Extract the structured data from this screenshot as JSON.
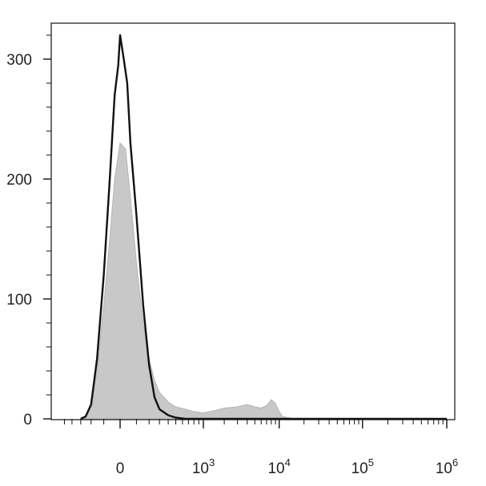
{
  "chart_data": {
    "type": "area",
    "title": "",
    "xlabel": "",
    "ylabel": "",
    "x_scale": "biexponential",
    "ylim": [
      0,
      330
    ],
    "y_ticks": [
      {
        "value": 0,
        "label": "0"
      },
      {
        "value": 100,
        "label": "100"
      },
      {
        "value": 200,
        "label": "200"
      },
      {
        "value": 300,
        "label": "300"
      }
    ],
    "x_ticks": [
      {
        "value": 0,
        "base": "0",
        "exp": ""
      },
      {
        "value": 1000,
        "base": "10",
        "exp": "3"
      },
      {
        "value": 10000,
        "base": "10",
        "exp": "4"
      },
      {
        "value": 100000,
        "base": "10",
        "exp": "5"
      },
      {
        "value": 1000000,
        "base": "10",
        "exp": "6"
      }
    ],
    "grid": false,
    "legend": "none",
    "series": [
      {
        "style": "filled",
        "color": "#c8c8c8",
        "x": [
          -300,
          -250,
          -200,
          -150,
          -100,
          -60,
          -30,
          0,
          30,
          60,
          100,
          150,
          200,
          250,
          300,
          400,
          500,
          650,
          800,
          1000,
          1500,
          2000,
          3000,
          4000,
          5000,
          6000,
          7000,
          8000,
          9000,
          10000,
          11000,
          15000,
          30000,
          100000,
          1000000
        ],
        "y": [
          0,
          2,
          10,
          40,
          95,
          150,
          200,
          230,
          225,
          185,
          130,
          80,
          50,
          32,
          22,
          14,
          10,
          8,
          6,
          5,
          7,
          9,
          10,
          12,
          10,
          9,
          11,
          16,
          13,
          6,
          2,
          0,
          0,
          0,
          0
        ]
      },
      {
        "style": "line",
        "color": "#111111",
        "x": [
          -300,
          -250,
          -200,
          -150,
          -100,
          -60,
          -30,
          -10,
          0,
          20,
          40,
          60,
          100,
          150,
          200,
          250,
          300,
          400,
          500,
          650,
          800,
          1000,
          2000,
          10000,
          100000,
          1000000
        ],
        "y": [
          0,
          2,
          12,
          50,
          120,
          200,
          270,
          295,
          320,
          300,
          280,
          230,
          170,
          95,
          45,
          18,
          8,
          3,
          1,
          0,
          0,
          0,
          0,
          0,
          0,
          0
        ]
      }
    ]
  }
}
